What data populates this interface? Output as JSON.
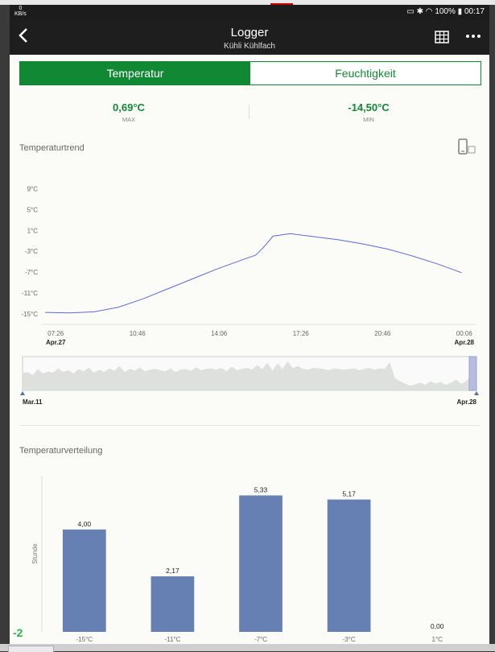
{
  "statusbar": {
    "speed_value": "0",
    "speed_unit": "KB/s",
    "battery": "100%",
    "time": "00:17"
  },
  "appbar": {
    "title": "Logger",
    "subtitle": "Kühli Kühlfach",
    "back_icon": "back-arrow-icon",
    "table_icon": "table-icon",
    "more_icon": "more-icon"
  },
  "tabs": [
    {
      "label": "Temperatur",
      "active": true
    },
    {
      "label": "Feuchtigkeit",
      "active": false
    }
  ],
  "stats": {
    "max_value": "0,69°C",
    "max_label": "MAX",
    "min_value": "-14,50°C",
    "min_label": "MIN"
  },
  "trend_section": {
    "title": "Temperaturtrend",
    "device_icon": "rotate-device-icon"
  },
  "distribution_section": {
    "title": "Temperaturverteilung"
  },
  "colors": {
    "accent": "#118833",
    "line": "#5b6bd8",
    "bar": "#6680b4"
  },
  "chart_data": [
    {
      "type": "line",
      "title": "Temperaturtrend",
      "yticks": [
        "9°C",
        "5°C",
        "1°C",
        "-3°C",
        "-7°C",
        "-11°C",
        "-15°C"
      ],
      "ytick_values": [
        9,
        5,
        1,
        -3,
        -7,
        -11,
        -15
      ],
      "ylim": [
        -17,
        12
      ],
      "xticks": [
        "07:26",
        "10:46",
        "14:06",
        "17:26",
        "20:46",
        "00:06"
      ],
      "xtick_hours": [
        7.433,
        10.767,
        14.1,
        17.433,
        20.767,
        24.1
      ],
      "xdates": [
        {
          "label": "Apr.27",
          "hour": 7.433
        },
        {
          "label": "Apr.28",
          "hour": 24.1
        }
      ],
      "xlim": [
        7.0,
        24.6
      ],
      "series": [
        {
          "x": [
            7.0,
            8.0,
            9.0,
            10.0,
            11.0,
            12.0,
            13.0,
            14.0,
            15.0,
            15.6,
            15.9,
            16.3,
            17.0,
            18.0,
            19.0,
            20.0,
            21.0,
            22.0,
            23.0,
            24.0
          ],
          "y": [
            -14.7,
            -14.8,
            -14.6,
            -13.7,
            -12.1,
            -10.2,
            -8.3,
            -6.4,
            -4.7,
            -3.7,
            -2.3,
            -0.1,
            0.4,
            -0.2,
            -0.8,
            -1.6,
            -2.6,
            -3.9,
            -5.4,
            -7.1
          ]
        }
      ]
    },
    {
      "type": "area",
      "title": "",
      "start_label": "Mar.11",
      "end_label": "Apr.28",
      "values": [
        0.55,
        0.6,
        0.5,
        0.7,
        0.55,
        0.62,
        0.58,
        0.72,
        0.6,
        0.66,
        0.55,
        0.7,
        0.62,
        0.75,
        0.58,
        0.68,
        0.6,
        0.72,
        0.64,
        0.8,
        0.6,
        0.7,
        0.65,
        0.75,
        0.62,
        0.68,
        0.7,
        0.66,
        0.62,
        0.72,
        0.6,
        0.68,
        0.7,
        0.64,
        0.75,
        0.66,
        0.7,
        0.72,
        0.68,
        0.74,
        0.62,
        0.78,
        0.66,
        0.7,
        0.74,
        0.68,
        0.82,
        0.7,
        0.9,
        0.65,
        0.88,
        0.7,
        0.95,
        0.72,
        0.8,
        0.7,
        0.68,
        0.74,
        0.72,
        0.7,
        0.66,
        0.72,
        0.7,
        0.68,
        0.7,
        0.72,
        0.66,
        0.7,
        0.74,
        0.68,
        0.72,
        0.7,
        0.92,
        0.4,
        0.3,
        0.22,
        0.15,
        0.2,
        0.25,
        0.18,
        0.3,
        0.22,
        0.28,
        0.18,
        0.25,
        0.35,
        0.22,
        0.3,
        0.5,
        0.38
      ]
    },
    {
      "type": "bar",
      "title": "Temperaturverteilung",
      "ylabel": "Stunde",
      "categories": [
        "-15°C",
        "-11°C",
        "-7°C",
        "-3°C",
        "1°C"
      ],
      "values": [
        4.0,
        2.17,
        5.33,
        5.17,
        0.0
      ],
      "value_labels": [
        "4,00",
        "2,17",
        "5,33",
        "5,17",
        "0,00"
      ],
      "ylim": [
        0,
        6.1
      ]
    }
  ],
  "corner_label": "-2"
}
